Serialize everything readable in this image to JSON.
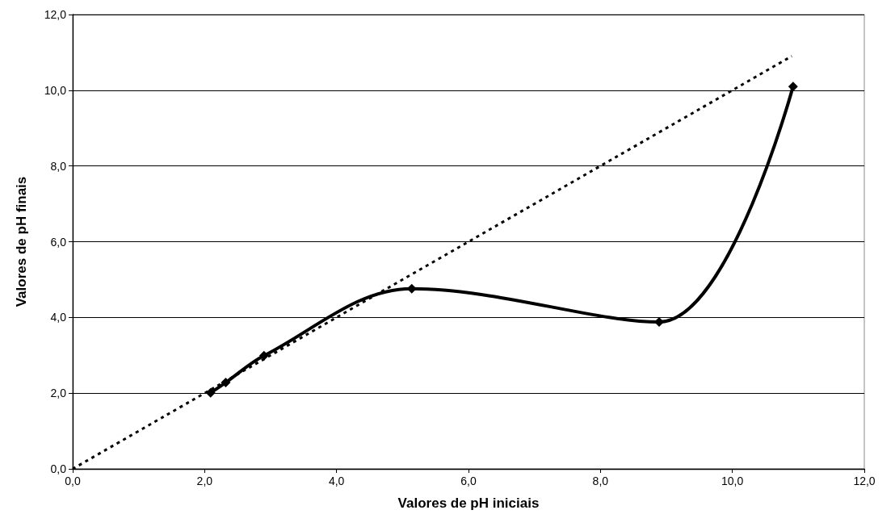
{
  "chart_data": {
    "type": "line",
    "xlabel": "Valores de pH iniciais",
    "ylabel": "Valores de pH finais",
    "series": [
      {
        "color": "#000000",
        "x": [
          2.09,
          2.32,
          2.9,
          5.14,
          8.89,
          10.92
        ],
        "values": [
          2.01,
          2.28,
          2.99,
          4.76,
          3.88,
          10.1
        ],
        "marker": "diamond",
        "line_style": "solid"
      },
      {
        "color": "#000000",
        "x": [
          0,
          10.9
        ],
        "values": [
          0,
          10.9
        ],
        "marker": "none",
        "line_style": "dotted"
      }
    ],
    "xlim": [
      0,
      12
    ],
    "ylim": [
      0,
      12
    ],
    "xticks": [
      {
        "value": 0,
        "label": "0,0"
      },
      {
        "value": 2,
        "label": "2,0"
      },
      {
        "value": 4,
        "label": "4,0"
      },
      {
        "value": 6,
        "label": "6,0"
      },
      {
        "value": 8,
        "label": "8,0"
      },
      {
        "value": 10,
        "label": "10,0"
      },
      {
        "value": 12,
        "label": "12,0"
      }
    ],
    "yticks": [
      {
        "value": 0,
        "label": "0,0"
      },
      {
        "value": 2,
        "label": "2,0"
      },
      {
        "value": 4,
        "label": "4,0"
      },
      {
        "value": 6,
        "label": "6,0"
      },
      {
        "value": 8,
        "label": "8,0"
      },
      {
        "value": 10,
        "label": "10,0"
      },
      {
        "value": 12,
        "label": "12,0"
      }
    ],
    "grid": "y"
  }
}
